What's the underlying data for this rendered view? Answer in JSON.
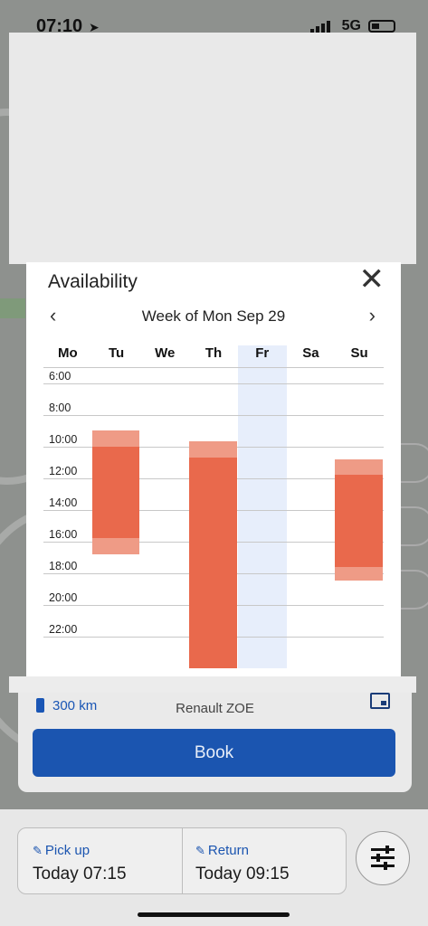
{
  "status": {
    "time": "07:10",
    "network": "5G"
  },
  "availability": {
    "title": "Availability",
    "week_label": "Week of Mon Sep 29",
    "days": [
      "Mo",
      "Tu",
      "We",
      "Th",
      "Fr",
      "Sa",
      "Su"
    ],
    "highlighted_day": "Fr",
    "hours": [
      "6:00",
      "8:00",
      "10:00",
      "12:00",
      "14:00",
      "16:00",
      "18:00",
      "20:00",
      "22:00"
    ],
    "bookings": [
      {
        "day": "Tu",
        "start": 9.0,
        "end": 16.8,
        "buffer_start": 9.0,
        "buffer_end": 16.8,
        "core_start": 10.0,
        "core_end": 15.8
      },
      {
        "day": "Th",
        "start": 9.7,
        "end": 24.0,
        "buffer_start": 9.7,
        "buffer_end": 24.0,
        "core_start": 10.7,
        "core_end": 24.0
      },
      {
        "day": "Su",
        "start": 10.8,
        "end": 18.5,
        "buffer_start": 10.8,
        "buffer_end": 18.5,
        "core_start": 11.8,
        "core_end": 17.6
      }
    ],
    "colors": {
      "booked": "#e9694c",
      "buffer": "#ef9b86",
      "highlight": "#e7eefb"
    }
  },
  "vehicle": {
    "range": "300 km",
    "model": "Renault ZOE",
    "book_label": "Book"
  },
  "trip": {
    "pickup_label": "Pick up",
    "pickup_value": "Today  07:15",
    "return_label": "Return",
    "return_value": "Today  09:15"
  }
}
